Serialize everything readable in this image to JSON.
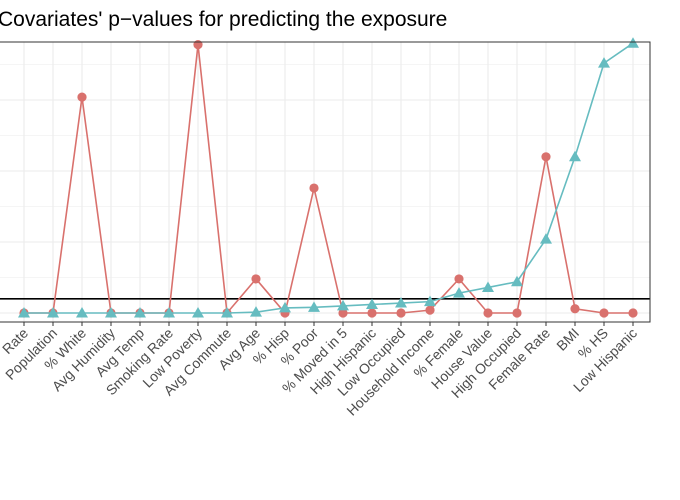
{
  "chart_data": {
    "type": "line",
    "title": "Covariates' p−values for predicting the exposure",
    "xlabel": "",
    "ylabel": "",
    "ylim": [
      0,
      1
    ],
    "grid": true,
    "categories": [
      "Rate",
      "Population",
      "% White",
      "Avg Humidity",
      "Avg Temp",
      "Smoking Rate",
      "Low Poverty",
      "Avg Commute",
      "Avg Age",
      "% Hisp",
      "% Poor",
      "% Moved in 5",
      "High Hispanic",
      "Low Occupied",
      "Household Income",
      "% Female",
      "House Value",
      "High Occupied",
      "Female Rate",
      "BMI",
      "% HS",
      "Low Hispanic"
    ],
    "reference_line": 0.05,
    "series": [
      {
        "color": "#d9716d",
        "marker": "circle",
        "values": [
          0.0,
          0.0,
          0.76,
          0.0,
          0.0,
          0.0,
          0.945,
          0.0,
          0.12,
          0.0,
          0.44,
          0.0,
          0.0,
          0.0,
          0.01,
          0.12,
          0.0,
          0.0,
          0.55,
          0.015,
          0.0,
          0.0
        ]
      },
      {
        "color": "#66bcc0",
        "marker": "triangle",
        "values": [
          0.0,
          0.0,
          0.0,
          0.0,
          0.0,
          0.0,
          0.0,
          0.0,
          0.003,
          0.018,
          0.02,
          0.025,
          0.03,
          0.035,
          0.04,
          0.07,
          0.09,
          0.11,
          0.26,
          0.55,
          0.88,
          0.95
        ]
      }
    ]
  }
}
